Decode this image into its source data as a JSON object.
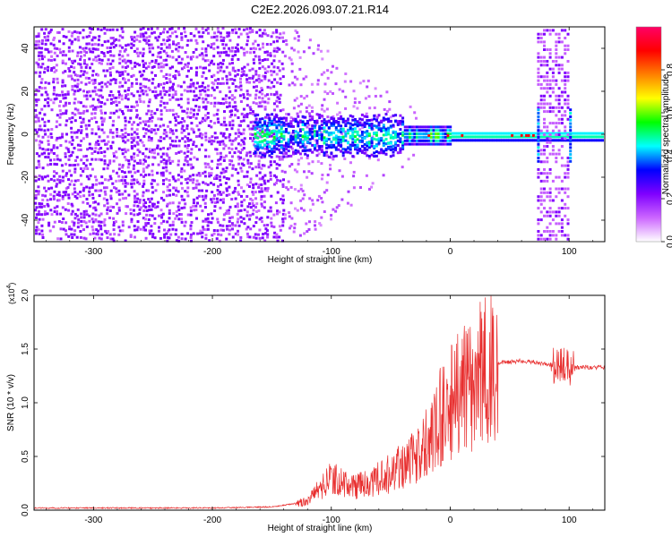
{
  "figure": {
    "title": "C2E2.2026.093.07.21.R14"
  },
  "chart_data": [
    {
      "type": "heatmap",
      "xlabel": "Height of straight line (km)",
      "ylabel": "Frequency (Hz)",
      "xlim": [
        -350,
        130
      ],
      "ylim": [
        -50,
        50
      ],
      "x_ticks": [
        "-300",
        "-200",
        "-100",
        "0",
        "100"
      ],
      "y_ticks": [
        "-40",
        "-20",
        "0",
        "20",
        "40"
      ],
      "colorbar": {
        "label": "Normalized spectral amplitude",
        "ticks": [
          "0.0",
          "0.2",
          "0.4",
          "0.6",
          "0.8"
        ],
        "range": [
          0,
          1
        ],
        "colors": [
          "#ffffff",
          "#cc66ff",
          "#7f00ff",
          "#0000ff",
          "#00ffff",
          "#00ff00",
          "#ffff00",
          "#ff8000",
          "#ff0000",
          "#ff0066"
        ]
      },
      "features": {
        "noise_band": {
          "x": [
            -350,
            -140
          ],
          "y": [
            -50,
            50
          ]
        },
        "fading_noise": {
          "x": [
            -140,
            -20
          ]
        },
        "signal_line": {
          "x": [
            -165,
            130
          ],
          "y": 0
        },
        "vertical_bands": [
          {
            "x": [
              73,
              100
            ],
            "y": [
              -50,
              50
            ]
          }
        ]
      }
    },
    {
      "type": "line",
      "xlabel": "Height of straight line (km)",
      "ylabel": "SNR (10 * v/v)",
      "y_multiplier": "(x10",
      "y_multiplier_exp": "4",
      "xlim": [
        -350,
        130
      ],
      "ylim": [
        0,
        2.0
      ],
      "x_ticks": [
        "-300",
        "-200",
        "-100",
        "0",
        "100"
      ],
      "y_ticks": [
        "0.0",
        "0.5",
        "1.0",
        "1.5",
        "2.0"
      ],
      "line_color": "#e83030",
      "series": [
        {
          "x": [
            -350,
            -200,
            -150,
            -120,
            -110,
            -100,
            -90,
            -80,
            -70,
            -60,
            -50,
            -40,
            -30,
            -20,
            -10,
            0,
            10,
            20,
            30,
            40,
            50,
            60,
            70,
            80,
            90,
            100,
            110,
            130
          ],
          "values": [
            0.02,
            0.02,
            0.03,
            0.08,
            0.2,
            0.32,
            0.25,
            0.22,
            0.25,
            0.3,
            0.35,
            0.42,
            0.5,
            0.65,
            0.85,
            1.0,
            1.1,
            1.2,
            1.33,
            1.37,
            1.38,
            1.39,
            1.38,
            1.36,
            1.35,
            1.33,
            1.33,
            1.33
          ]
        }
      ]
    }
  ]
}
